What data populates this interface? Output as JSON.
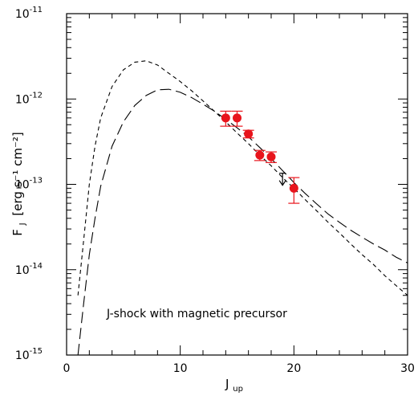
{
  "chart_data": {
    "type": "line",
    "xlabel": "J",
    "xlabel_sub": "up",
    "ylabel": "F",
    "ylabel_sub": "J",
    "ylabel_units": "[erg s⁻¹ cm⁻²]",
    "annotation": "J-shock with magnetic precursor",
    "xlim": [
      0,
      30
    ],
    "ylim": [
      1e-15,
      1e-11
    ],
    "yscale": "log",
    "x_ticks": [
      "0",
      "10",
      "20",
      "30"
    ],
    "y_ticks": [
      {
        "base": "10",
        "exp": "-11"
      },
      {
        "base": "10",
        "exp": "-12"
      },
      {
        "base": "10",
        "exp": "-13"
      },
      {
        "base": "10",
        "exp": "-14"
      },
      {
        "base": "10",
        "exp": "-15"
      }
    ],
    "colors": {
      "points": "#e8141c",
      "axes": "#000000",
      "lines": "#000000"
    },
    "series": [
      {
        "style": "short-dash",
        "x": [
          1,
          1.5,
          2,
          2.5,
          3,
          4,
          5,
          6,
          7,
          8,
          9,
          10,
          11,
          12,
          13,
          14,
          15,
          16,
          17,
          18,
          19,
          20,
          21,
          22,
          23,
          24,
          25,
          26,
          27,
          28,
          29,
          30
        ],
        "y": [
          5e-15,
          2.2e-14,
          1e-13,
          2.8e-13,
          6e-13,
          1.4e-12,
          2.2e-12,
          2.7e-12,
          2.8e-12,
          2.5e-12,
          2e-12,
          1.6e-12,
          1.25e-12,
          9.5e-13,
          7.2e-13,
          5.4e-13,
          4e-13,
          3e-13,
          2.2e-13,
          1.65e-13,
          1.2e-13,
          9e-14,
          6.6e-14,
          4.9e-14,
          3.6e-14,
          2.7e-14,
          2e-14,
          1.5e-14,
          1.15e-14,
          8.5e-15,
          6.5e-15,
          5e-15
        ]
      },
      {
        "style": "long-dash",
        "x": [
          1,
          1.5,
          2,
          2.5,
          3,
          4,
          5,
          6,
          7,
          8,
          9,
          10,
          11,
          12,
          13,
          14,
          15,
          16,
          17,
          18,
          19,
          20,
          21,
          22,
          23,
          24,
          25,
          26,
          27,
          28,
          29,
          30
        ],
        "y": [
          1e-15,
          4e-15,
          1.5e-14,
          4e-14,
          9.5e-14,
          2.8e-13,
          5.4e-13,
          8.4e-13,
          1.1e-12,
          1.28e-12,
          1.3e-12,
          1.2e-12,
          1.04e-12,
          8.7e-13,
          7.2e-13,
          5.8e-13,
          4.6e-13,
          3.6e-13,
          2.7e-13,
          2e-13,
          1.45e-13,
          1.05e-13,
          7.8e-14,
          5.9e-14,
          4.5e-14,
          3.6e-14,
          2.9e-14,
          2.4e-14,
          2e-14,
          1.7e-14,
          1.4e-14,
          1.2e-14
        ]
      }
    ],
    "points": [
      {
        "x": 14,
        "y": 6e-13,
        "yerr_low": 4.8e-13,
        "yerr_high": 7.2e-13
      },
      {
        "x": 15,
        "y": 6e-13,
        "yerr_low": 4.8e-13,
        "yerr_high": 7.2e-13
      },
      {
        "x": 16,
        "y": 3.9e-13,
        "yerr_low": 3.5e-13,
        "yerr_high": 4.3e-13
      },
      {
        "x": 17,
        "y": 2.2e-13,
        "yerr_low": 1.9e-13,
        "yerr_high": 2.5e-13
      },
      {
        "x": 18,
        "y": 2.1e-13,
        "yerr_low": 1.8e-13,
        "yerr_high": 2.4e-13
      },
      {
        "x": 20,
        "y": 9e-14,
        "yerr_low": 6e-14,
        "yerr_high": 1.2e-13
      }
    ],
    "upper_limits": [
      {
        "x": 19,
        "y": 1.35e-13
      }
    ]
  }
}
